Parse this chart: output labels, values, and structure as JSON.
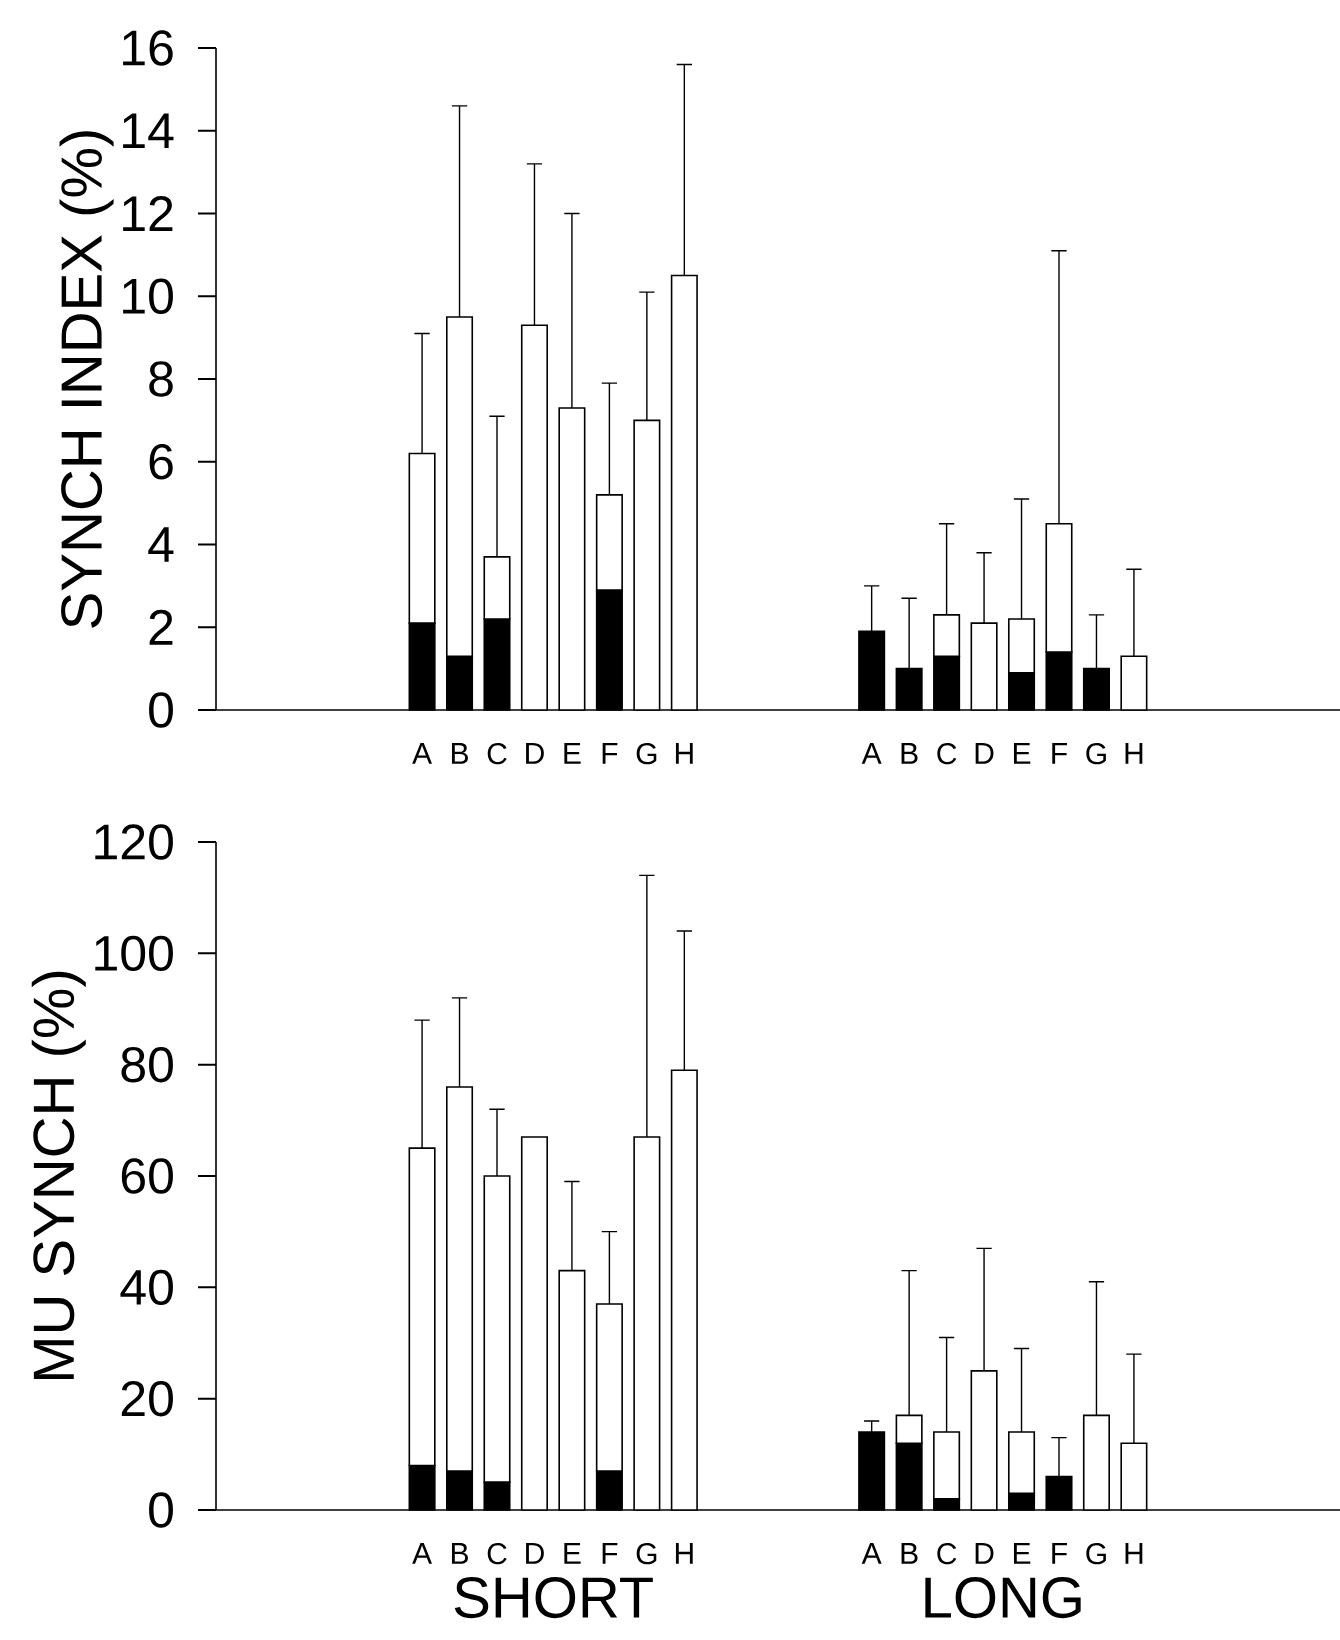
{
  "chart_data": [
    {
      "type": "bar",
      "stacked": true,
      "ylabel": "SYNCH INDEX (%)",
      "categories": [
        null,
        null,
        null,
        null,
        null,
        "A",
        "B",
        "C",
        "D",
        "E",
        "F",
        "G",
        "H",
        null,
        null,
        null,
        null,
        "A",
        "B",
        "C",
        "D",
        "E",
        "F",
        "G",
        "H",
        null,
        null,
        null,
        null,
        null
      ],
      "ylim": [
        0,
        16
      ],
      "yticks": [
        0,
        2,
        4,
        6,
        8,
        10,
        12,
        14,
        16
      ],
      "series": [
        {
          "color": "#000000",
          "values": [
            null,
            null,
            null,
            null,
            null,
            2.1,
            1.3,
            2.2,
            0,
            0,
            2.9,
            0,
            0,
            null,
            null,
            null,
            null,
            1.9,
            1.0,
            1.3,
            0,
            0.9,
            1.4,
            1.0,
            0,
            null,
            null,
            null,
            null,
            null
          ]
        },
        {
          "color": "#ffffff",
          "values": [
            null,
            null,
            null,
            null,
            null,
            4.1,
            8.2,
            1.5,
            9.3,
            7.3,
            2.3,
            7.0,
            10.5,
            null,
            null,
            null,
            null,
            0,
            0,
            1.0,
            2.1,
            1.3,
            3.1,
            0,
            1.3,
            null,
            null,
            null,
            null,
            null
          ],
          "errors": [
            null,
            null,
            null,
            null,
            null,
            [
              6.2,
              9.1
            ],
            [
              9.5,
              14.6
            ],
            [
              3.7,
              7.1
            ],
            [
              9.3,
              13.2
            ],
            [
              7.3,
              12.0
            ],
            [
              5.2,
              7.9
            ],
            [
              7.0,
              10.1
            ],
            [
              10.5,
              15.6
            ],
            null,
            null,
            null,
            null,
            [
              1.9,
              3.0
            ],
            [
              1.0,
              2.7
            ],
            [
              2.3,
              4.5
            ],
            [
              2.1,
              3.8
            ],
            [
              2.2,
              5.1
            ],
            [
              4.5,
              11.1
            ],
            [
              1.0,
              2.3
            ],
            [
              1.3,
              3.4
            ],
            null,
            null,
            null,
            null,
            null
          ]
        }
      ]
    },
    {
      "type": "bar",
      "stacked": true,
      "ylabel": "MU SYNCH (%)",
      "categories": [
        null,
        null,
        null,
        null,
        null,
        "A",
        "B",
        "C",
        "D",
        "E",
        "F",
        "G",
        "H",
        null,
        null,
        null,
        null,
        "A",
        "B",
        "C",
        "D",
        "E",
        "F",
        "G",
        "H",
        null,
        null,
        null,
        null,
        null
      ],
      "ylim": [
        0,
        120
      ],
      "yticks": [
        0,
        20,
        40,
        60,
        80,
        100,
        120
      ],
      "annotations": [
        "SHORT",
        "LONG"
      ],
      "series": [
        {
          "color": "#000000",
          "values": [
            null,
            null,
            null,
            null,
            null,
            8,
            7,
            5,
            0,
            0,
            7,
            0,
            0,
            null,
            null,
            null,
            null,
            14,
            12,
            2,
            0,
            3,
            6,
            0,
            0,
            null,
            null,
            null,
            null,
            null
          ]
        },
        {
          "color": "#ffffff",
          "values": [
            null,
            null,
            null,
            null,
            null,
            57,
            69,
            55,
            67,
            43,
            30,
            67,
            79,
            null,
            null,
            null,
            null,
            0,
            5,
            12,
            25,
            11,
            0,
            17,
            12,
            null,
            null,
            null,
            null,
            null
          ],
          "errors": [
            null,
            null,
            null,
            null,
            null,
            [
              65,
              88
            ],
            [
              76,
              92
            ],
            [
              60,
              72
            ],
            null,
            [
              43,
              59
            ],
            [
              37,
              50
            ],
            [
              67,
              114
            ],
            [
              79,
              104
            ],
            null,
            null,
            null,
            null,
            [
              14,
              16
            ],
            [
              17,
              43
            ],
            [
              14,
              31
            ],
            [
              25,
              47
            ],
            [
              14,
              29
            ],
            [
              6,
              13
            ],
            [
              17,
              41
            ],
            [
              12,
              28
            ],
            null,
            null,
            null,
            null,
            null
          ]
        }
      ]
    }
  ]
}
